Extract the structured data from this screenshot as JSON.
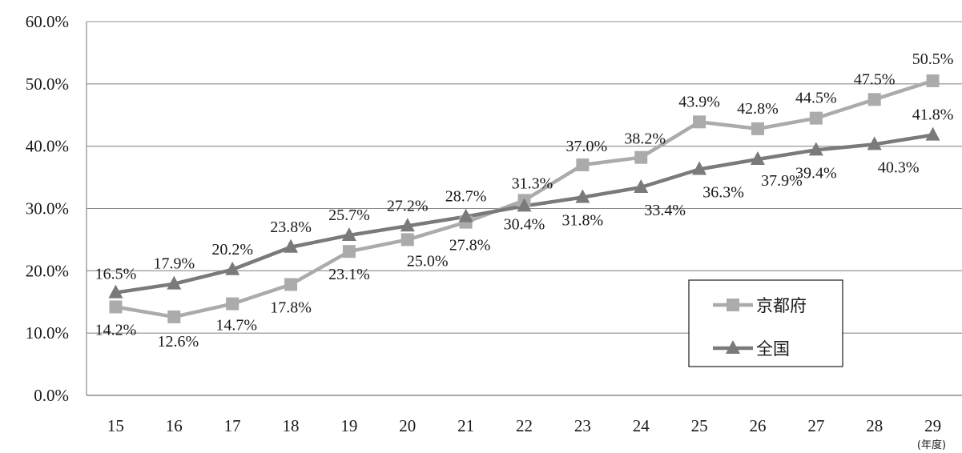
{
  "chart_data": {
    "type": "line",
    "categories": [
      "15",
      "16",
      "17",
      "18",
      "19",
      "20",
      "21",
      "22",
      "23",
      "24",
      "25",
      "26",
      "27",
      "28",
      "29"
    ],
    "x_unit": "(年度)",
    "y_ticks": [
      "0.0%",
      "10.0%",
      "20.0%",
      "30.0%",
      "40.0%",
      "50.0%",
      "60.0%"
    ],
    "ylim": [
      0,
      60
    ],
    "grid": true,
    "legend_position": "bottom-right",
    "colors": {
      "京都府": "#ababab",
      "全国": "#7a7a7a"
    },
    "series": [
      {
        "name": "京都府",
        "marker": "square",
        "values": [
          14.2,
          12.6,
          14.7,
          17.8,
          23.1,
          25.0,
          27.8,
          31.3,
          37.0,
          38.2,
          43.9,
          42.8,
          44.5,
          47.5,
          50.5
        ],
        "labels": [
          "14.2%",
          "12.6%",
          "14.7%",
          "17.8%",
          "23.1%",
          "25.0%",
          "27.8%",
          "31.3%",
          "37.0%",
          "38.2%",
          "43.9%",
          "42.8%",
          "44.5%",
          "47.5%",
          "50.5%"
        ]
      },
      {
        "name": "全国",
        "marker": "triangle",
        "values": [
          16.5,
          17.9,
          20.2,
          23.8,
          25.7,
          27.2,
          28.7,
          30.4,
          31.8,
          33.4,
          36.3,
          37.9,
          39.4,
          40.3,
          41.8
        ],
        "labels": [
          "16.5%",
          "17.9%",
          "20.2%",
          "23.8%",
          "25.7%",
          "27.2%",
          "28.7%",
          "30.4%",
          "31.8%",
          "33.4%",
          "36.3%",
          "37.9%",
          "39.4%",
          "40.3%",
          "41.8%"
        ]
      }
    ]
  }
}
